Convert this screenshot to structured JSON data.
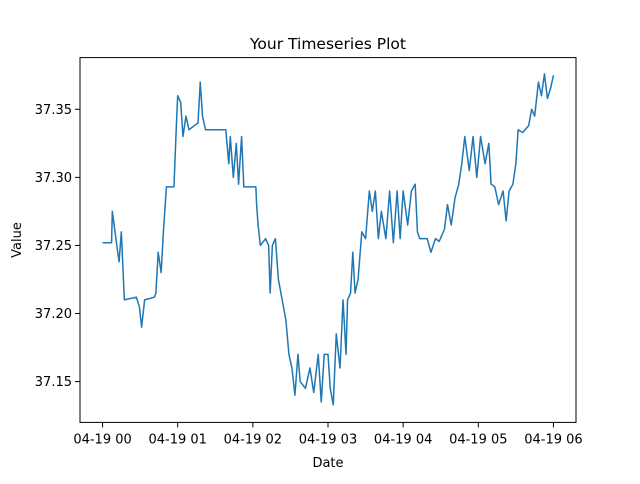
{
  "chart_data": {
    "type": "line",
    "title": "Your Timeseries Plot",
    "xlabel": "Date",
    "ylabel": "Value",
    "x": [
      0,
      0.12,
      0.13,
      0.19,
      0.22,
      0.25,
      0.29,
      0.45,
      0.49,
      0.52,
      0.56,
      0.69,
      0.71,
      0.74,
      0.78,
      0.81,
      0.85,
      0.95,
      0.98,
      1.0,
      1.04,
      1.07,
      1.11,
      1.15,
      1.27,
      1.3,
      1.33,
      1.37,
      1.64,
      1.68,
      1.7,
      1.74,
      1.78,
      1.81,
      1.85,
      1.88,
      2.04,
      2.05,
      2.07,
      2.1,
      2.17,
      2.21,
      2.23,
      2.26,
      2.3,
      2.34,
      2.39,
      2.44,
      2.48,
      2.52,
      2.56,
      2.6,
      2.63,
      2.7,
      2.76,
      2.81,
      2.87,
      2.91,
      2.95,
      3.0,
      3.03,
      3.07,
      3.11,
      3.16,
      3.2,
      3.24,
      3.26,
      3.3,
      3.33,
      3.36,
      3.4,
      3.45,
      3.5,
      3.55,
      3.59,
      3.63,
      3.67,
      3.71,
      3.77,
      3.82,
      3.87,
      3.92,
      3.96,
      4.0,
      4.06,
      4.11,
      4.16,
      4.19,
      4.22,
      4.32,
      4.37,
      4.43,
      4.48,
      4.55,
      4.59,
      4.64,
      4.69,
      4.74,
      4.78,
      4.82,
      4.88,
      4.93,
      4.98,
      5.03,
      5.09,
      5.14,
      5.17,
      5.22,
      5.27,
      5.33,
      5.37,
      5.41,
      5.46,
      5.5,
      5.53,
      5.59,
      5.67,
      5.71,
      5.75,
      5.8,
      5.84,
      5.88,
      5.92,
      5.96,
      6.0
    ],
    "series": [
      {
        "color": "#1f77b4",
        "values": [
          37.252,
          37.252,
          37.275,
          37.25,
          37.238,
          37.26,
          37.21,
          37.212,
          37.205,
          37.19,
          37.21,
          37.212,
          37.215,
          37.245,
          37.23,
          37.26,
          37.293,
          37.293,
          37.335,
          37.36,
          37.355,
          37.33,
          37.345,
          37.335,
          37.34,
          37.37,
          37.345,
          37.335,
          37.335,
          37.31,
          37.33,
          37.3,
          37.325,
          37.295,
          37.33,
          37.293,
          37.293,
          37.28,
          37.265,
          37.25,
          37.255,
          37.25,
          37.215,
          37.25,
          37.255,
          37.225,
          37.21,
          37.195,
          37.17,
          37.16,
          37.14,
          37.17,
          37.15,
          37.145,
          37.16,
          37.142,
          37.17,
          37.135,
          37.17,
          37.17,
          37.145,
          37.133,
          37.185,
          37.16,
          37.21,
          37.17,
          37.21,
          37.215,
          37.245,
          37.215,
          37.225,
          37.26,
          37.255,
          37.29,
          37.275,
          37.29,
          37.255,
          37.275,
          37.255,
          37.29,
          37.252,
          37.29,
          37.255,
          37.29,
          37.265,
          37.29,
          37.295,
          37.26,
          37.255,
          37.255,
          37.245,
          37.255,
          37.253,
          37.262,
          37.28,
          37.265,
          37.285,
          37.295,
          37.31,
          37.33,
          37.305,
          37.33,
          37.3,
          37.33,
          37.31,
          37.325,
          37.295,
          37.293,
          37.28,
          37.29,
          37.268,
          37.29,
          37.295,
          37.31,
          37.335,
          37.333,
          37.338,
          37.35,
          37.345,
          37.37,
          37.36,
          37.376,
          37.358,
          37.365,
          37.375
        ]
      }
    ],
    "xlim": [
      -0.3,
      6.3
    ],
    "xticks": [
      {
        "value": 0,
        "label": "04-19 00"
      },
      {
        "value": 1,
        "label": "04-19 01"
      },
      {
        "value": 2,
        "label": "04-19 02"
      },
      {
        "value": 3,
        "label": "04-19 03"
      },
      {
        "value": 4,
        "label": "04-19 04"
      },
      {
        "value": 5,
        "label": "04-19 05"
      },
      {
        "value": 6,
        "label": "04-19 06"
      }
    ],
    "ylim": [
      37.12,
      37.388
    ],
    "yticks": [
      37.15,
      {
        "value": 37.2,
        "label": "37.20"
      },
      37.25,
      {
        "value": 37.3,
        "label": "37.30"
      },
      37.35
    ]
  }
}
